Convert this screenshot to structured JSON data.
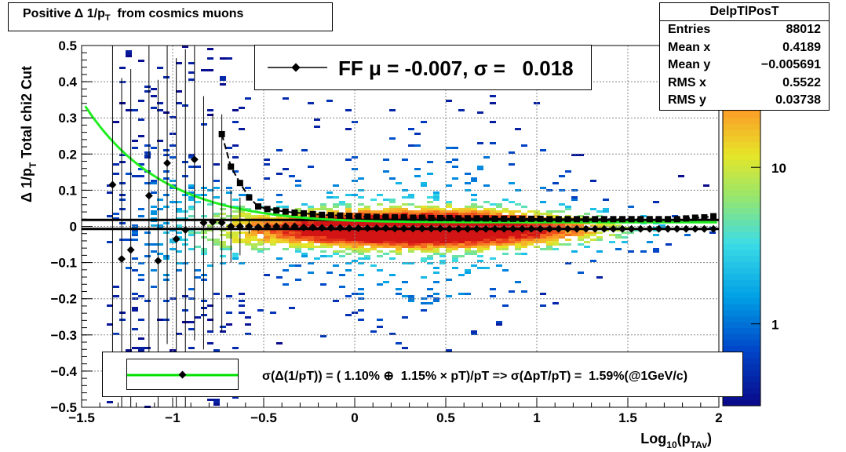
{
  "chart_data": {
    "type": "heatmap",
    "title": "Positive Δ 1/p_T  from cosmics muons",
    "title_main": "Positive Δ 1/p",
    "title_sub": "T",
    "title_tail": "  from cosmics muons",
    "xlabel_main": "Log",
    "xlabel_sub1": "10",
    "xlabel_mid": "(p",
    "xlabel_sub2": "TAv",
    "xlabel_tail": ")",
    "ylabel_main": "Δ 1/p",
    "ylabel_sub": "T",
    "ylabel_tail": "  Total chi2 Cut",
    "xlim": [
      -1.5,
      2.0
    ],
    "ylim": [
      -0.5,
      0.5
    ],
    "x_ticks": [
      "−1.5",
      "−1",
      "−0.5",
      "0",
      "0.5",
      "1",
      "1.5",
      "2"
    ],
    "x_tick_values": [
      -1.5,
      -1,
      -0.5,
      0,
      0.5,
      1,
      1.5,
      2
    ],
    "y_ticks": [
      "−0.5",
      "−0.4",
      "−0.3",
      "−0.2",
      "−0.1",
      "0",
      "0.1",
      "0.2",
      "0.3",
      "0.4",
      "0.5"
    ],
    "y_tick_values": [
      -0.5,
      -0.4,
      -0.3,
      -0.2,
      -0.1,
      0,
      0.1,
      0.2,
      0.3,
      0.4,
      0.5
    ],
    "grid": true,
    "z_scale": "log",
    "colorbar_ticks": [
      "10",
      "1"
    ],
    "colorbar_tick_values": [
      10,
      1
    ],
    "colorbar_range": [
      0.3,
      60
    ],
    "stats": {
      "name": "DelpTlPosT",
      "rows": [
        {
          "label": "Entries",
          "value": "88012"
        },
        {
          "label": "Mean x",
          "value": "0.4189"
        },
        {
          "label": "Mean y",
          "value": "−0.005691"
        },
        {
          "label": "RMS x",
          "value": "0.5522"
        },
        {
          "label": "RMS y",
          "value": "0.03738"
        }
      ]
    },
    "ff_label": "FF μ = -0.007, σ =   0.018",
    "resolution_label": "σ(Δ(1/pT)) = ( 1.10% ⊕  1.15% × pT)/pT => σ(ΔpT/pT) =  1.59%(@1GeV/c)",
    "horizontal_lines_y": [
      0.018,
      -0.007
    ],
    "mean_points": {
      "x": [
        -1.33,
        -1.28,
        -1.23,
        -1.13,
        -1.08,
        -1.03,
        -0.98,
        -0.93,
        -0.88,
        -0.83,
        -0.78,
        -0.73,
        -0.68,
        -0.63,
        -0.58,
        -0.53,
        -0.48,
        -0.43,
        -0.38,
        -0.33,
        -0.28,
        -0.23,
        -0.18,
        -0.13,
        -0.08,
        -0.03,
        0.02,
        0.07,
        0.12,
        0.17,
        0.22,
        0.27,
        0.32,
        0.37,
        0.42,
        0.47,
        0.52,
        0.57,
        0.62,
        0.67,
        0.72,
        0.77,
        0.82,
        0.87,
        0.92,
        0.97,
        1.02,
        1.07,
        1.12,
        1.17,
        1.22,
        1.27,
        1.32,
        1.37,
        1.42,
        1.47,
        1.52,
        1.57,
        1.62,
        1.67,
        1.72,
        1.77,
        1.82,
        1.87,
        1.92,
        1.97
      ],
      "y": [
        0.115,
        -0.09,
        -0.065,
        0.085,
        -0.095,
        0.175,
        -0.035,
        -0.01,
        0.185,
        0.01,
        0.012,
        0.01,
        0.0,
        0.0,
        0.0,
        -0.002,
        0.0,
        0.0,
        0.0,
        0.0,
        -0.003,
        -0.003,
        -0.004,
        -0.004,
        -0.004,
        -0.005,
        -0.005,
        -0.005,
        -0.005,
        -0.005,
        -0.006,
        -0.006,
        -0.006,
        -0.006,
        -0.006,
        -0.006,
        -0.007,
        -0.007,
        -0.007,
        -0.007,
        -0.007,
        -0.007,
        -0.007,
        -0.007,
        -0.007,
        -0.007,
        -0.007,
        -0.007,
        -0.007,
        -0.007,
        -0.007,
        -0.007,
        -0.007,
        -0.007,
        -0.007,
        -0.007,
        -0.007,
        -0.007,
        -0.007,
        -0.007,
        -0.007,
        -0.007,
        -0.007,
        -0.007,
        -0.007,
        -0.007
      ],
      "yerr": [
        0.5,
        0.5,
        0.5,
        0.5,
        0.5,
        0.5,
        0.5,
        0.5,
        0.5,
        0.35,
        0.3,
        0.3,
        0.1,
        0.08,
        0.02,
        0.01,
        0.01,
        0.005,
        0.005,
        0.005,
        0.005,
        0.005,
        0.005,
        0.005,
        0.005,
        0.005,
        0.005,
        0.005,
        0.005,
        0.005,
        0.005,
        0.005,
        0.005,
        0.005,
        0.005,
        0.005,
        0.005,
        0.005,
        0.005,
        0.005,
        0.005,
        0.005,
        0.005,
        0.005,
        0.005,
        0.005,
        0.005,
        0.005,
        0.005,
        0.005,
        0.005,
        0.005,
        0.005,
        0.005,
        0.005,
        0.005,
        0.005,
        0.005,
        0.005,
        0.005,
        0.005,
        0.005,
        0.005,
        0.005,
        0.005,
        0.005
      ]
    },
    "sigma_points": {
      "x": [
        -0.73,
        -0.68,
        -0.63,
        -0.58,
        -0.53,
        -0.48,
        -0.43,
        -0.38,
        -0.33,
        -0.28,
        -0.23,
        -0.18,
        -0.13,
        -0.08,
        -0.03,
        0.02,
        0.07,
        0.12,
        0.17,
        0.22,
        0.27,
        0.32,
        0.37,
        0.42,
        0.47,
        0.52,
        0.57,
        0.62,
        0.67,
        0.72,
        0.77,
        0.82,
        0.87,
        0.92,
        0.97,
        1.02,
        1.07,
        1.12,
        1.17,
        1.22,
        1.27,
        1.32,
        1.37,
        1.42,
        1.47,
        1.52,
        1.57,
        1.62,
        1.67,
        1.72,
        1.77,
        1.82,
        1.87,
        1.92,
        1.97
      ],
      "y": [
        0.255,
        0.165,
        0.12,
        0.08,
        0.055,
        0.048,
        0.044,
        0.041,
        0.038,
        0.036,
        0.034,
        0.032,
        0.031,
        0.03,
        0.029,
        0.028,
        0.027,
        0.026,
        0.026,
        0.025,
        0.025,
        0.024,
        0.024,
        0.023,
        0.023,
        0.023,
        0.022,
        0.022,
        0.022,
        0.022,
        0.021,
        0.021,
        0.021,
        0.021,
        0.021,
        0.021,
        0.02,
        0.02,
        0.02,
        0.02,
        0.02,
        0.02,
        0.02,
        0.02,
        0.02,
        0.02,
        0.02,
        0.02,
        0.02,
        0.02,
        0.02,
        0.022,
        0.024,
        0.025,
        0.028
      ]
    },
    "fit_curve": {
      "function": "sqrt(0.0110^2 + (0.0115*10^x)^2) / 10^x",
      "x_range": [
        -1.48,
        2.0
      ]
    }
  }
}
